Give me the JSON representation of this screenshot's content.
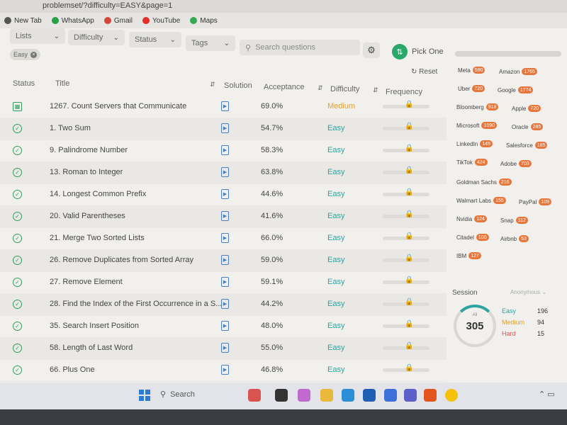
{
  "browser": {
    "url_fragment": "problemset/?difficulty=EASY&page=1",
    "bookmarks": [
      {
        "label": "New Tab",
        "icon": "globe-icon",
        "color": "#555555"
      },
      {
        "label": "WhatsApp",
        "icon": "whatsapp-icon",
        "color": "#25a244"
      },
      {
        "label": "Gmail",
        "icon": "gmail-icon",
        "color": "#d44638"
      },
      {
        "label": "YouTube",
        "icon": "youtube-icon",
        "color": "#e52d27"
      },
      {
        "label": "Maps",
        "icon": "maps-icon",
        "color": "#34a853"
      }
    ]
  },
  "filters": {
    "lists": "Lists",
    "difficulty": "Difficulty",
    "status": "Status",
    "tags": "Tags",
    "search_placeholder": "Search questions",
    "pick_one": "Pick One",
    "reset": "Reset",
    "active_chip": "Easy"
  },
  "table": {
    "headers": {
      "status": "Status",
      "title": "Title",
      "solution": "Solution",
      "acceptance": "Acceptance",
      "difficulty": "Difficulty",
      "frequency": "Frequency"
    },
    "rows": [
      {
        "status": "calendar",
        "title": "1267. Count Servers that Communicate",
        "acceptance": "69.0%",
        "difficulty": "Medium"
      },
      {
        "status": "solved",
        "title": "1. Two Sum",
        "acceptance": "54.7%",
        "difficulty": "Easy"
      },
      {
        "status": "solved",
        "title": "9. Palindrome Number",
        "acceptance": "58.3%",
        "difficulty": "Easy"
      },
      {
        "status": "solved",
        "title": "13. Roman to Integer",
        "acceptance": "63.8%",
        "difficulty": "Easy"
      },
      {
        "status": "solved",
        "title": "14. Longest Common Prefix",
        "acceptance": "44.6%",
        "difficulty": "Easy"
      },
      {
        "status": "solved",
        "title": "20. Valid Parentheses",
        "acceptance": "41.6%",
        "difficulty": "Easy"
      },
      {
        "status": "solved",
        "title": "21. Merge Two Sorted Lists",
        "acceptance": "66.0%",
        "difficulty": "Easy"
      },
      {
        "status": "solved",
        "title": "26. Remove Duplicates from Sorted Array",
        "acceptance": "59.0%",
        "difficulty": "Easy"
      },
      {
        "status": "solved",
        "title": "27. Remove Element",
        "acceptance": "59.1%",
        "difficulty": "Easy"
      },
      {
        "status": "solved",
        "title": "28. Find the Index of the First Occurrence in a S...",
        "acceptance": "44.2%",
        "difficulty": "Easy"
      },
      {
        "status": "solved",
        "title": "35. Search Insert Position",
        "acceptance": "48.0%",
        "difficulty": "Easy"
      },
      {
        "status": "solved",
        "title": "58. Length of Last Word",
        "acceptance": "55.0%",
        "difficulty": "Easy"
      },
      {
        "status": "solved",
        "title": "66. Plus One",
        "acceptance": "46.8%",
        "difficulty": "Easy"
      }
    ]
  },
  "companies": [
    {
      "name": "Meta",
      "count": "590"
    },
    {
      "name": "Amazon",
      "count": "1765"
    },
    {
      "name": "Uber",
      "count": "720"
    },
    {
      "name": "Google",
      "count": "1774"
    },
    {
      "name": "Bloomberg",
      "count": "918"
    },
    {
      "name": "Apple",
      "count": "720"
    },
    {
      "name": "Microsoft",
      "count": "1090"
    },
    {
      "name": "Oracle",
      "count": "285"
    },
    {
      "name": "LinkedIn",
      "count": "149"
    },
    {
      "name": "Salesforce",
      "count": "185"
    },
    {
      "name": "TikTok",
      "count": "424"
    },
    {
      "name": "Adobe",
      "count": "703"
    },
    {
      "name": "Goldman Sachs",
      "count": "216"
    },
    {
      "name": "Walmart Labs",
      "count": "155"
    },
    {
      "name": "PayPal",
      "count": "109"
    },
    {
      "name": "Nvidia",
      "count": "124"
    },
    {
      "name": "Snap",
      "count": "112"
    },
    {
      "name": "Citadel",
      "count": "100"
    },
    {
      "name": "Airbnb",
      "count": "53"
    },
    {
      "name": "IBM",
      "count": "127"
    }
  ],
  "session": {
    "label": "Session",
    "user": "Anonymous",
    "ring_label": "All",
    "total": "305",
    "easy_label": "Easy",
    "easy_count": "196",
    "medium_label": "Medium",
    "medium_count": "94",
    "hard_label": "Hard",
    "hard_count": "15"
  },
  "taskbar": {
    "search": "Search"
  },
  "colors": {
    "easy": "#2fa3a0",
    "medium": "#e0a030",
    "accent": "#2aa86b",
    "company_badge": "#e8763a"
  }
}
